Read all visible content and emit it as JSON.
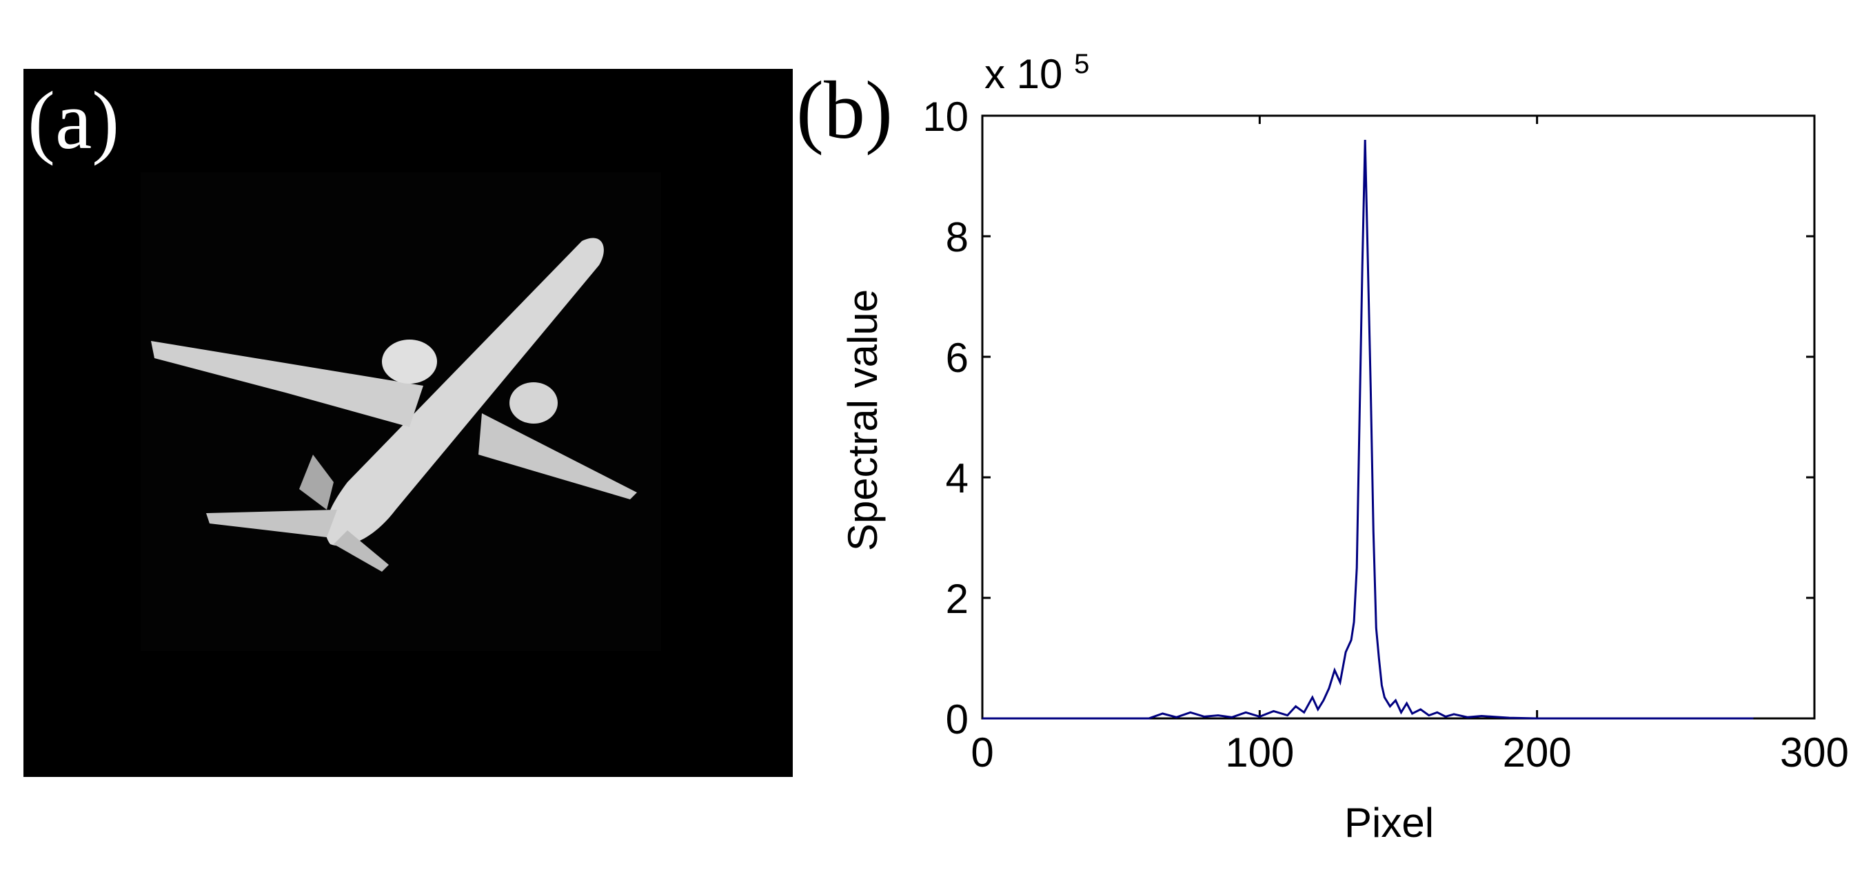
{
  "panels": {
    "a_label": "(a)",
    "b_label": "(b)"
  },
  "chart_data": {
    "type": "line",
    "xlabel": "Pixel",
    "ylabel": "Spectral value",
    "y_exponent_label": "x 10",
    "y_exponent_power": "5",
    "xlim": [
      0,
      300
    ],
    "ylim": [
      0,
      10
    ],
    "x_ticks": [
      0,
      100,
      200,
      300
    ],
    "y_ticks": [
      0,
      2,
      4,
      6,
      8,
      10
    ],
    "grid": false,
    "line_color": "#000080",
    "series": [
      {
        "x": [
          0,
          20,
          40,
          60,
          65,
          70,
          75,
          80,
          85,
          90,
          95,
          100,
          105,
          110,
          113,
          116,
          119,
          121,
          123,
          125,
          127,
          129,
          131,
          132,
          133,
          134,
          135,
          136,
          137,
          138,
          139,
          140,
          141,
          142,
          143,
          144,
          145,
          147,
          149,
          151,
          153,
          155,
          158,
          161,
          164,
          167,
          170,
          175,
          180,
          190,
          200,
          220,
          240,
          260,
          278
        ],
        "y": [
          0,
          0,
          0,
          0,
          0.08,
          0.02,
          0.1,
          0.03,
          0.05,
          0.02,
          0.1,
          0.03,
          0.12,
          0.05,
          0.2,
          0.1,
          0.35,
          0.15,
          0.3,
          0.5,
          0.8,
          0.6,
          1.1,
          1.2,
          1.3,
          1.6,
          2.5,
          5.0,
          7.5,
          9.6,
          7.6,
          5.5,
          3.1,
          1.5,
          1.0,
          0.55,
          0.35,
          0.2,
          0.3,
          0.1,
          0.25,
          0.08,
          0.15,
          0.05,
          0.1,
          0.03,
          0.07,
          0.02,
          0.04,
          0.01,
          0,
          0,
          0,
          0,
          0
        ]
      }
    ]
  }
}
